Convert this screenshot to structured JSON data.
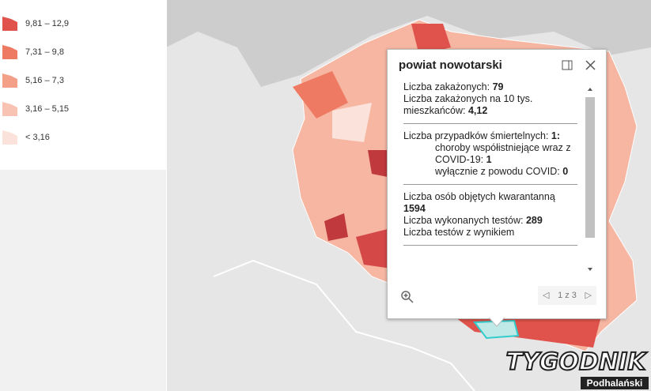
{
  "legend": {
    "items": [
      {
        "label": "9,81 – 12,9",
        "color": "#e0534c"
      },
      {
        "label": "7,31 – 9,8",
        "color": "#ee7a63"
      },
      {
        "label": "5,16 – 7,3",
        "color": "#f4a088"
      },
      {
        "label": "3,16 – 5,15",
        "color": "#f8c3b2"
      },
      {
        "label": "< 3,16",
        "color": "#fbe3db"
      }
    ]
  },
  "popup": {
    "title": "powiat nowotarski",
    "sections": [
      {
        "rows": [
          {
            "label": "Liczba zakażonych: ",
            "value": "79"
          },
          {
            "label": "Liczba zakażonych na 10 tys. mieszkańców: ",
            "value": "4,12"
          }
        ]
      },
      {
        "rows": [
          {
            "label": "Liczba przypadków śmiertelnych: ",
            "value": "1:"
          }
        ],
        "sub": [
          {
            "label": "choroby współistniejące wraz z COVID-19: ",
            "value": "1"
          },
          {
            "label": "wyłącznie z powodu COVID: ",
            "value": "0"
          }
        ]
      },
      {
        "rows": [
          {
            "label": "Liczba osób objętych kwarantanną ",
            "value": "1594"
          },
          {
            "label": "Liczba wykonanych testów: ",
            "value": "289"
          },
          {
            "label": "Liczba testów z wynikiem",
            "value": ""
          }
        ]
      }
    ],
    "pager": "1 z 3"
  },
  "watermark": {
    "brand": "TYGODNIK",
    "sub": "Podhalański"
  }
}
